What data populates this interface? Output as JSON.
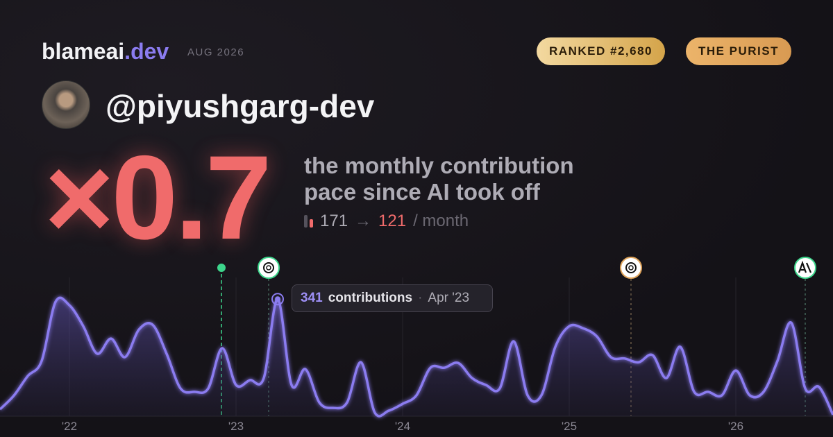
{
  "header": {
    "brand": "blameai",
    "brand_tld": ".dev",
    "period": "AUG 2026",
    "badges": [
      "RANKED #2,680",
      "THE PURIST"
    ],
    "handle": "@piyushgarg-dev"
  },
  "headline": {
    "multiplier": "×0.7",
    "description": [
      "the monthly contribution",
      "pace since AI took off"
    ],
    "before": "171",
    "arrow": "→",
    "after": "121",
    "unit": "/ month"
  },
  "chart_data": {
    "type": "area",
    "color": "#8b7cf0",
    "x": [
      null,
      null,
      null,
      null,
      null,
      "'22",
      null,
      null,
      null,
      null,
      null,
      null,
      null,
      null,
      null,
      null,
      null,
      "'23",
      null,
      null,
      null,
      null,
      null,
      null,
      null,
      null,
      null,
      null,
      null,
      "'24",
      null,
      null,
      null,
      null,
      null,
      null,
      null,
      null,
      null,
      null,
      null,
      "'25",
      null,
      null,
      null,
      null,
      null,
      null,
      null,
      null,
      null,
      null,
      null,
      "'26",
      null,
      null,
      null,
      null,
      null,
      null,
      null
    ],
    "values": [
      20,
      60,
      117,
      161,
      333,
      323,
      262,
      182,
      226,
      172,
      252,
      266,
      182,
      81,
      71,
      81,
      198,
      91,
      105,
      111,
      341,
      91,
      137,
      40,
      24,
      40,
      157,
      10,
      16,
      36,
      61,
      141,
      141,
      155,
      111,
      91,
      81,
      218,
      61,
      61,
      202,
      262,
      256,
      232,
      172,
      168,
      157,
      178,
      111,
      202,
      71,
      71,
      61,
      133,
      61,
      71,
      161,
      272,
      81,
      85,
      4
    ],
    "ylim": [
      0,
      400
    ],
    "tooltip": {
      "unit": "contributions",
      "date": "Apr '23"
    }
  }
}
